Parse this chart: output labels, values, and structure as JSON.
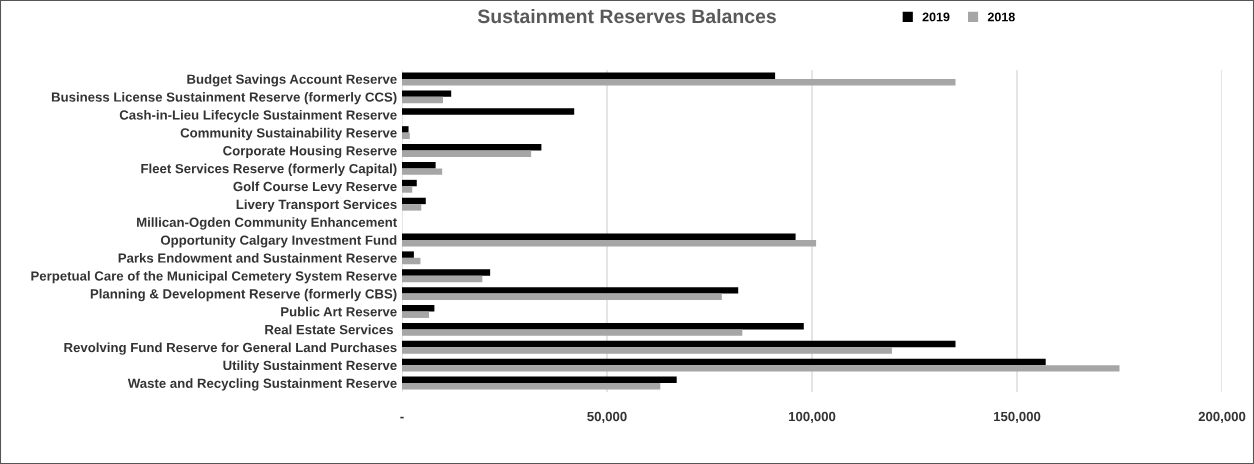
{
  "chart_data": {
    "type": "bar",
    "orientation": "horizontal",
    "title": "Sustainment Reserves Balances",
    "categories": [
      "Budget Savings Account Reserve",
      "Business License Sustainment Reserve (formerly CCS)",
      "Cash-in-Lieu Lifecycle Sustainment Reserve",
      "Community Sustainability Reserve",
      "Corporate Housing Reserve",
      "Fleet Services Reserve (formerly Capital)",
      "Golf Course Levy Reserve",
      "Livery Transport Services",
      "Millican-Ogden Community Enhancement",
      "Opportunity Calgary Investment Fund",
      "Parks Endowment and Sustainment Reserve",
      "Perpetual Care of the Municipal Cemetery System Reserve",
      "Planning & Development Reserve (formerly CBS)",
      "Public Art Reserve",
      "Real Estate Services ",
      "Revolving Fund Reserve for General Land Purchases",
      "Utility Sustainment Reserve",
      "Waste and Recycling Sustainment Reserve"
    ],
    "series": [
      {
        "name": "2019",
        "color": "#000000",
        "values": [
          91000,
          12000,
          42000,
          1600,
          34000,
          8200,
          3600,
          5800,
          0,
          96000,
          2900,
          21500,
          82000,
          7900,
          98000,
          135000,
          157000,
          67000
        ]
      },
      {
        "name": "2018",
        "color": "#a6a6a6",
        "values": [
          135000,
          10000,
          0,
          1900,
          31500,
          9800,
          2500,
          4700,
          0,
          101000,
          4500,
          19600,
          78000,
          6600,
          83000,
          119500,
          175000,
          63000
        ]
      }
    ],
    "xlim": [
      0,
      200000
    ],
    "xticks": [
      {
        "value": 0,
        "label": "-"
      },
      {
        "value": 50000,
        "label": "50,000"
      },
      {
        "value": 100000,
        "label": "100,000"
      },
      {
        "value": 150000,
        "label": "150,000"
      },
      {
        "value": 200000,
        "label": "200,000"
      }
    ],
    "grid": "x",
    "legend": "top"
  }
}
